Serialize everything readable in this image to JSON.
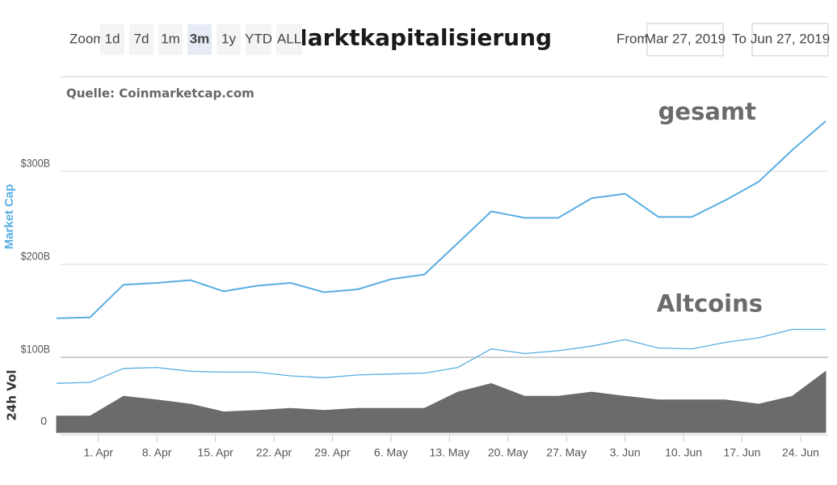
{
  "chart_data": {
    "type": "line",
    "title": "Marktkapitalisierung",
    "source": "Quelle: Coinmarketcap.com",
    "zoom_label": "Zoom",
    "zoom_buttons": [
      "1d",
      "7d",
      "1m",
      "3m",
      "1y",
      "YTD",
      "ALL"
    ],
    "zoom_selected": "3m",
    "from_label": "From",
    "from_value": "Mar 27, 2019",
    "to_label": "To",
    "to_value": "Jun 27, 2019",
    "ylabel": "Market Cap",
    "x": [
      "2019-03-27",
      "2019-03-31",
      "2019-04-04",
      "2019-04-08",
      "2019-04-12",
      "2019-04-16",
      "2019-04-20",
      "2019-04-24",
      "2019-04-28",
      "2019-05-02",
      "2019-05-06",
      "2019-05-10",
      "2019-05-14",
      "2019-05-18",
      "2019-05-22",
      "2019-05-26",
      "2019-05-30",
      "2019-06-03",
      "2019-06-07",
      "2019-06-11",
      "2019-06-15",
      "2019-06-19",
      "2019-06-23",
      "2019-06-27"
    ],
    "xlim": [
      "2019-03-27",
      "2019-06-27"
    ],
    "xticks": [
      {
        "value": "2019-04-01",
        "label": "1. Apr"
      },
      {
        "value": "2019-04-08",
        "label": "8. Apr"
      },
      {
        "value": "2019-04-15",
        "label": "15. Apr"
      },
      {
        "value": "2019-04-22",
        "label": "22. Apr"
      },
      {
        "value": "2019-04-29",
        "label": "29. Apr"
      },
      {
        "value": "2019-05-06",
        "label": "6. May"
      },
      {
        "value": "2019-05-13",
        "label": "13. May"
      },
      {
        "value": "2019-05-20",
        "label": "20. May"
      },
      {
        "value": "2019-05-27",
        "label": "27. May"
      },
      {
        "value": "2019-06-03",
        "label": "3. Jun"
      },
      {
        "value": "2019-06-10",
        "label": "10. Jun"
      },
      {
        "value": "2019-06-17",
        "label": "17. Jun"
      },
      {
        "value": "2019-06-24",
        "label": "24. Jun"
      }
    ],
    "ylim": [
      40,
      400
    ],
    "yticks": [
      {
        "value": 100,
        "label": "$100B"
      },
      {
        "value": 200,
        "label": "$200B"
      },
      {
        "value": 300,
        "label": "$300B"
      }
    ],
    "y2lim": [
      -15,
      90
    ],
    "y2ticks": [
      0
    ],
    "grid": true,
    "series": [
      {
        "name": "gesamt",
        "color": "#5aaee2",
        "values": [
          142,
          143,
          178,
          180,
          183,
          171,
          177,
          180,
          170,
          173,
          184,
          189,
          223,
          257,
          250,
          250,
          271,
          276,
          251,
          251,
          269,
          289,
          323,
          354
        ]
      },
      {
        "name": "Altcoins",
        "color": "#5aaee2",
        "values": [
          72,
          73,
          88,
          89,
          85,
          84,
          84,
          80,
          78,
          81,
          82,
          83,
          89,
          109,
          104,
          107,
          112,
          119,
          110,
          109,
          116,
          121,
          130,
          130
        ]
      },
      {
        "name": "24h Vol",
        "color": "#6b6b6b",
        "axis": "y2",
        "values": [
          8,
          8,
          36,
          31,
          25,
          14,
          16,
          19,
          16,
          19,
          19,
          19,
          42,
          54,
          36,
          36,
          42,
          36,
          31,
          31,
          31,
          25,
          36,
          71
        ]
      }
    ]
  }
}
